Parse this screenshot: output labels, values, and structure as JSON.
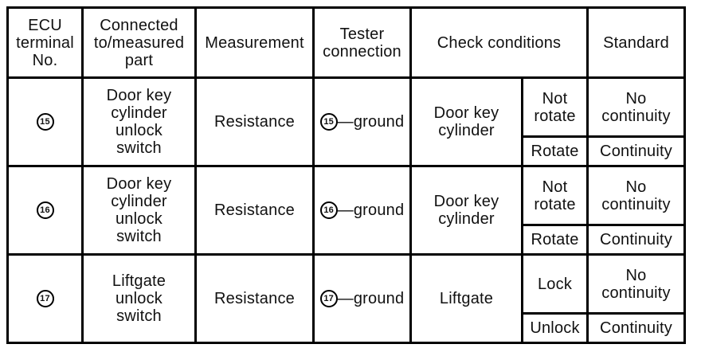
{
  "headers": {
    "ecu_terminal": "ECU\nterminal\nNo.",
    "connected_part": "Connected\nto/measured\npart",
    "measurement": "Measurement",
    "tester_connection": "Tester\nconnection",
    "check_conditions": "Check conditions",
    "standard": "Standard"
  },
  "rows": [
    {
      "terminal": "15",
      "part": "Door key\ncylinder\nunlock\nswitch",
      "measurement": "Resistance",
      "tester_suffix": "—ground",
      "condition": "Door key\ncylinder",
      "sub": [
        {
          "state": "Not\nrotate",
          "standard": "No\ncontinuity"
        },
        {
          "state": "Rotate",
          "standard": "Continuity"
        }
      ]
    },
    {
      "terminal": "16",
      "part": "Door key\ncylinder\nunlock\nswitch",
      "measurement": "Resistance",
      "tester_suffix": "—ground",
      "condition": "Door key\ncylinder",
      "sub": [
        {
          "state": "Not\nrotate",
          "standard": "No\ncontinuity"
        },
        {
          "state": "Rotate",
          "standard": "Continuity"
        }
      ]
    },
    {
      "terminal": "17",
      "part": "Liftgate\nunlock\nswitch",
      "measurement": "Resistance",
      "tester_suffix": "—ground",
      "condition": "Liftgate",
      "sub": [
        {
          "state": "Lock",
          "standard": "No\ncontinuity"
        },
        {
          "state": "Unlock",
          "standard": "Continuity"
        }
      ]
    }
  ]
}
